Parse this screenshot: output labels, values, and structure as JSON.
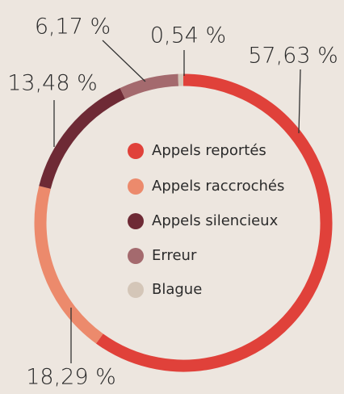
{
  "chart_data": {
    "type": "donut",
    "categories": [
      "Appels reportés",
      "Appels raccrochés",
      "Appels silencieux",
      "Erreur",
      "Blague"
    ],
    "values": [
      57.63,
      18.29,
      13.48,
      6.17,
      0.54
    ],
    "value_labels": [
      "57,63 %",
      "18,29 %",
      "13,48 %",
      "6,17 %",
      "0,54 %"
    ],
    "colors": [
      "#e0413a",
      "#ec8a6c",
      "#6e2a35",
      "#a46a6e",
      "#d4c6b8"
    ],
    "legend": "center"
  }
}
